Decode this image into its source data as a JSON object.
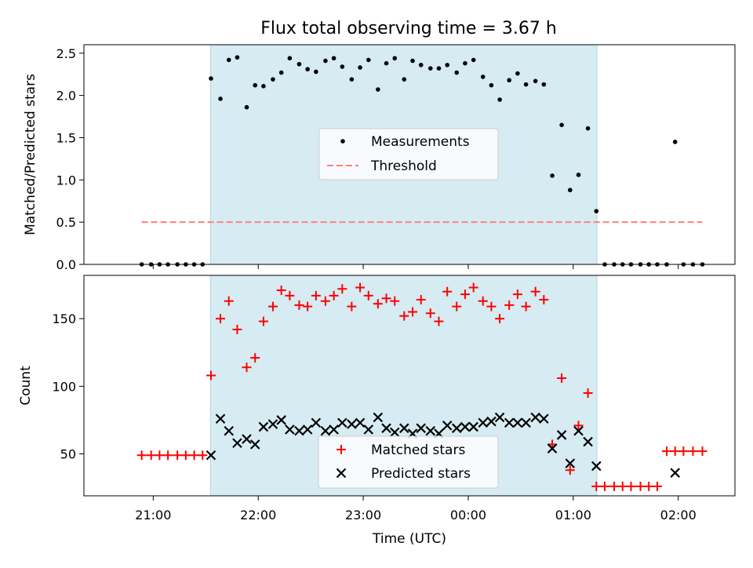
{
  "title": "Flux total observing time = 3.67 h",
  "colors": {
    "shade": "#add8e6",
    "measurement": "#000000",
    "threshold": "#ff7f7f",
    "matched": "#ff0000",
    "predicted": "#000000"
  },
  "chart_data": [
    {
      "type": "scatter",
      "name": "top",
      "ylabel": "Matched/Predicted stars",
      "ylim": [
        0,
        2.6
      ],
      "yticks": [
        "0.0",
        "0.5",
        "1.0",
        "1.5",
        "2.0",
        "2.5"
      ],
      "x_unit": "hours since 20:00 UTC (x axis labeled by tick clock times)",
      "legend": {
        "position": "center",
        "entries": [
          "Measurements",
          "Threshold"
        ]
      },
      "shaded_span": {
        "x_start": 1.545,
        "x_end": 5.225
      },
      "threshold": {
        "value": 0.5,
        "x_start": 0.89,
        "x_end": 6.23
      },
      "measurements": [
        [
          0.89,
          0.0
        ],
        [
          0.98,
          0.0
        ],
        [
          1.06,
          0.0
        ],
        [
          1.14,
          0.0
        ],
        [
          1.23,
          0.0
        ],
        [
          1.31,
          0.0
        ],
        [
          1.39,
          0.0
        ],
        [
          1.47,
          0.0
        ],
        [
          1.55,
          2.2
        ],
        [
          1.64,
          1.96
        ],
        [
          1.72,
          2.42
        ],
        [
          1.8,
          2.45
        ],
        [
          1.89,
          1.86
        ],
        [
          1.97,
          2.12
        ],
        [
          2.05,
          2.11
        ],
        [
          2.14,
          2.19
        ],
        [
          2.22,
          2.27
        ],
        [
          2.3,
          2.44
        ],
        [
          2.39,
          2.37
        ],
        [
          2.47,
          2.31
        ],
        [
          2.55,
          2.28
        ],
        [
          2.64,
          2.41
        ],
        [
          2.72,
          2.44
        ],
        [
          2.8,
          2.34
        ],
        [
          2.89,
          2.19
        ],
        [
          2.97,
          2.33
        ],
        [
          3.05,
          2.42
        ],
        [
          3.14,
          2.07
        ],
        [
          3.22,
          2.38
        ],
        [
          3.3,
          2.44
        ],
        [
          3.39,
          2.19
        ],
        [
          3.47,
          2.41
        ],
        [
          3.55,
          2.36
        ],
        [
          3.64,
          2.32
        ],
        [
          3.72,
          2.32
        ],
        [
          3.8,
          2.36
        ],
        [
          3.89,
          2.27
        ],
        [
          3.97,
          2.38
        ],
        [
          4.05,
          2.42
        ],
        [
          4.14,
          2.22
        ],
        [
          4.22,
          2.12
        ],
        [
          4.3,
          1.95
        ],
        [
          4.39,
          2.18
        ],
        [
          4.47,
          2.26
        ],
        [
          4.55,
          2.13
        ],
        [
          4.64,
          2.17
        ],
        [
          4.72,
          2.13
        ],
        [
          4.8,
          1.05
        ],
        [
          4.89,
          1.65
        ],
        [
          4.97,
          0.88
        ],
        [
          5.05,
          1.06
        ],
        [
          5.14,
          1.61
        ],
        [
          5.22,
          0.63
        ],
        [
          5.3,
          0.0
        ],
        [
          5.39,
          0.0
        ],
        [
          5.47,
          0.0
        ],
        [
          5.55,
          0.0
        ],
        [
          5.64,
          0.0
        ],
        [
          5.72,
          0.0
        ],
        [
          5.8,
          0.0
        ],
        [
          5.89,
          0.0
        ],
        [
          5.97,
          1.45
        ],
        [
          6.05,
          0.0
        ],
        [
          6.14,
          0.0
        ],
        [
          6.23,
          0.0
        ]
      ]
    },
    {
      "type": "scatter",
      "name": "bottom",
      "xlabel": "Time (UTC)",
      "ylabel": "Count",
      "ylim": [
        19,
        182
      ],
      "yticks": [
        "50",
        "100",
        "150"
      ],
      "xticks": [
        {
          "x": 1,
          "label": "21:00"
        },
        {
          "x": 2,
          "label": "22:00"
        },
        {
          "x": 3,
          "label": "23:00"
        },
        {
          "x": 4,
          "label": "00:00"
        },
        {
          "x": 5,
          "label": "01:00"
        },
        {
          "x": 6,
          "label": "02:00"
        }
      ],
      "xlim": [
        0.34,
        6.54
      ],
      "legend": {
        "position": "lower center",
        "entries": [
          "Matched stars",
          "Predicted stars"
        ]
      },
      "shaded_span": {
        "x_start": 1.545,
        "x_end": 5.225
      },
      "series": [
        {
          "name": "Matched stars",
          "marker": "+",
          "points": [
            [
              0.89,
              49
            ],
            [
              0.98,
              49
            ],
            [
              1.06,
              49
            ],
            [
              1.14,
              49
            ],
            [
              1.23,
              49
            ],
            [
              1.31,
              49
            ],
            [
              1.39,
              49
            ],
            [
              1.47,
              49
            ],
            [
              1.55,
              108
            ],
            [
              1.64,
              150
            ],
            [
              1.72,
              163
            ],
            [
              1.8,
              142
            ],
            [
              1.89,
              114
            ],
            [
              1.97,
              121
            ],
            [
              2.05,
              148
            ],
            [
              2.14,
              159
            ],
            [
              2.22,
              171
            ],
            [
              2.3,
              167
            ],
            [
              2.39,
              160
            ],
            [
              2.47,
              159
            ],
            [
              2.55,
              167
            ],
            [
              2.64,
              163
            ],
            [
              2.72,
              167
            ],
            [
              2.8,
              172
            ],
            [
              2.89,
              159
            ],
            [
              2.97,
              173
            ],
            [
              3.05,
              167
            ],
            [
              3.14,
              161
            ],
            [
              3.22,
              165
            ],
            [
              3.3,
              163
            ],
            [
              3.39,
              152
            ],
            [
              3.47,
              155
            ],
            [
              3.55,
              164
            ],
            [
              3.64,
              154
            ],
            [
              3.72,
              148
            ],
            [
              3.8,
              170
            ],
            [
              3.89,
              159
            ],
            [
              3.97,
              168
            ],
            [
              4.05,
              173
            ],
            [
              4.14,
              163
            ],
            [
              4.22,
              159
            ],
            [
              4.3,
              150
            ],
            [
              4.39,
              160
            ],
            [
              4.47,
              168
            ],
            [
              4.55,
              159
            ],
            [
              4.64,
              170
            ],
            [
              4.72,
              164
            ],
            [
              4.8,
              57
            ],
            [
              4.89,
              106
            ],
            [
              4.97,
              38
            ],
            [
              5.05,
              71
            ],
            [
              5.14,
              95
            ],
            [
              5.22,
              26
            ],
            [
              5.3,
              26
            ],
            [
              5.39,
              26
            ],
            [
              5.47,
              26
            ],
            [
              5.55,
              26
            ],
            [
              5.64,
              26
            ],
            [
              5.72,
              26
            ],
            [
              5.8,
              26
            ],
            [
              5.89,
              52
            ],
            [
              5.97,
              52
            ],
            [
              6.05,
              52
            ],
            [
              6.14,
              52
            ],
            [
              6.23,
              52
            ]
          ]
        },
        {
          "name": "Predicted stars",
          "marker": "x",
          "points": [
            [
              1.55,
              49
            ],
            [
              1.64,
              76
            ],
            [
              1.72,
              67
            ],
            [
              1.8,
              58
            ],
            [
              1.89,
              61
            ],
            [
              1.97,
              57
            ],
            [
              2.05,
              70
            ],
            [
              2.14,
              72
            ],
            [
              2.22,
              75
            ],
            [
              2.3,
              68
            ],
            [
              2.39,
              67
            ],
            [
              2.47,
              68
            ],
            [
              2.55,
              73
            ],
            [
              2.64,
              67
            ],
            [
              2.72,
              68
            ],
            [
              2.8,
              73
            ],
            [
              2.89,
              72
            ],
            [
              2.97,
              73
            ],
            [
              3.05,
              68
            ],
            [
              3.14,
              77
            ],
            [
              3.22,
              69
            ],
            [
              3.3,
              66
            ],
            [
              3.39,
              69
            ],
            [
              3.47,
              65
            ],
            [
              3.55,
              69
            ],
            [
              3.64,
              67
            ],
            [
              3.72,
              65
            ],
            [
              3.8,
              71
            ],
            [
              3.89,
              69
            ],
            [
              3.97,
              70
            ],
            [
              4.05,
              70
            ],
            [
              4.14,
              73
            ],
            [
              4.22,
              74
            ],
            [
              4.3,
              77
            ],
            [
              4.39,
              73
            ],
            [
              4.47,
              73
            ],
            [
              4.55,
              73
            ],
            [
              4.64,
              77
            ],
            [
              4.72,
              76
            ],
            [
              4.8,
              54
            ],
            [
              4.89,
              64
            ],
            [
              4.97,
              43
            ],
            [
              5.05,
              67
            ],
            [
              5.14,
              59
            ],
            [
              5.22,
              41
            ],
            [
              5.97,
              36
            ]
          ]
        }
      ]
    }
  ]
}
